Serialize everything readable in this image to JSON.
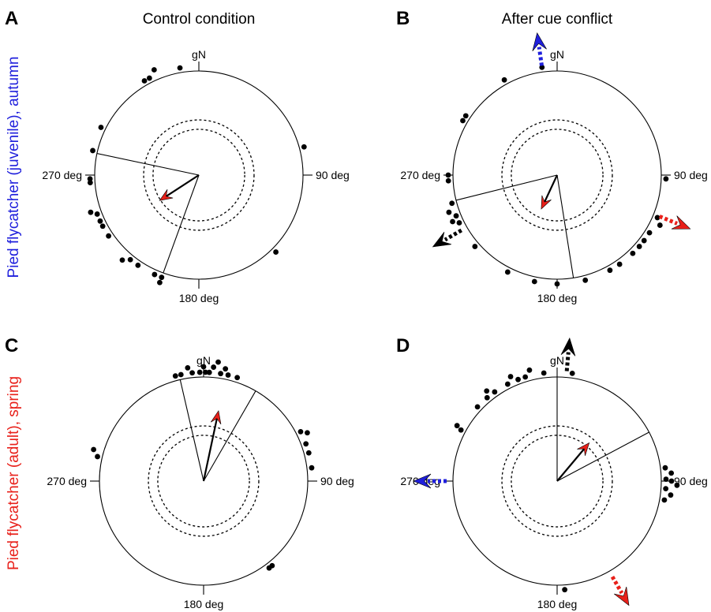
{
  "columns": [
    "Control condition",
    "After cue conflict"
  ],
  "rows": [
    {
      "label": "Pied flycatcher (juvenile), autumn",
      "color": "#1f1fdc"
    },
    {
      "label": "Pied flycatcher (adult), spring",
      "color": "#e8201a"
    }
  ],
  "direction_labels": {
    "north": "gN",
    "east": "90 deg",
    "south": "180 deg",
    "west": "270 deg"
  },
  "colors": {
    "arrow_head": "#e8201a",
    "blue": "#1f1fdc",
    "red": "#e8201a",
    "black": "#000000"
  },
  "chart_data": [
    {
      "type": "circular",
      "panel": "A",
      "title": "Control condition",
      "mean_direction_deg": 237,
      "mean_vector_length": 0.45,
      "confidence_interval_deg": [
        200,
        282
      ],
      "bird_directions_deg": [
        200,
        200,
        204,
        214,
        219,
        222,
        236,
        242,
        245,
        249,
        251,
        266,
        268,
        283,
        296,
        330,
        333,
        337,
        350,
        75,
        135
      ],
      "significance_circles": [
        0.44,
        0.53
      ],
      "expected_directions": []
    },
    {
      "type": "circular",
      "panel": "B",
      "title": "After cue conflict",
      "mean_direction_deg": 205,
      "mean_vector_length": 0.36,
      "confidence_interval_deg": [
        171,
        256
      ],
      "bird_directions_deg": [
        92,
        113,
        116,
        122,
        127,
        131,
        136,
        145,
        151,
        165,
        180,
        192,
        207,
        229,
        244,
        246,
        248,
        251,
        255,
        267,
        270,
        300,
        303,
        331,
        352
      ],
      "significance_circles": [
        0.44,
        0.53
      ],
      "expected_directions": [
        {
          "direction_deg": 352,
          "color": "blue"
        },
        {
          "direction_deg": 112,
          "color": "red"
        },
        {
          "direction_deg": 240,
          "color": "black"
        }
      ]
    },
    {
      "type": "circular",
      "panel": "C",
      "title": "",
      "mean_direction_deg": 12,
      "mean_vector_length": 0.69,
      "confidence_interval_deg": [
        347,
        30
      ],
      "bird_directions_deg": [
        345,
        348,
        352,
        354,
        358,
        360,
        1,
        3,
        5,
        7,
        9,
        11,
        13,
        18,
        63,
        65,
        70,
        75,
        83,
        141,
        143,
        283,
        286
      ],
      "significance_circles": [
        0.44,
        0.53
      ],
      "expected_directions": []
    },
    {
      "type": "circular",
      "panel": "D",
      "title": "",
      "mean_direction_deg": 40,
      "mean_vector_length": 0.48,
      "confidence_interval_deg": [
        0,
        62
      ],
      "bird_directions_deg": [
        313,
        320,
        322,
        325,
        333,
        336,
        339,
        343,
        346,
        353,
        8,
        83,
        86,
        89,
        90,
        92,
        94,
        97,
        100,
        176,
        298,
        299
      ],
      "significance_circles": [
        0.44,
        0.53
      ],
      "expected_directions": [
        {
          "direction_deg": 5,
          "color": "black"
        },
        {
          "direction_deg": 270,
          "color": "blue"
        },
        {
          "direction_deg": 150,
          "color": "red"
        }
      ]
    }
  ]
}
